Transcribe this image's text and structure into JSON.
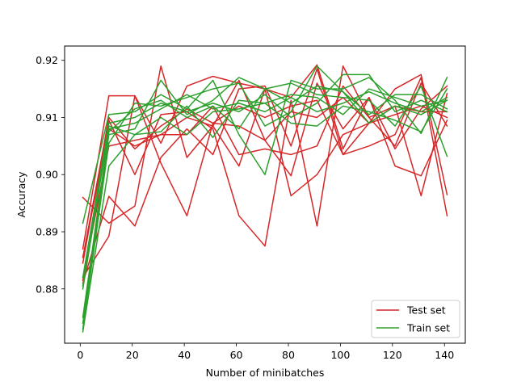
{
  "chart_data": {
    "type": "line",
    "title": "",
    "xlabel": "Number of minibatches",
    "ylabel": "Accuracy",
    "xlim": [
      -6,
      148
    ],
    "ylim": [
      0.8705,
      0.9225
    ],
    "xticks": [
      0,
      20,
      40,
      60,
      80,
      100,
      120,
      140
    ],
    "yticks": [
      0.88,
      0.89,
      0.9,
      0.91,
      0.92
    ],
    "ytick_labels": [
      "0.88",
      "0.89",
      "0.90",
      "0.91",
      "0.92"
    ],
    "grid": false,
    "legend_position": "lower-right",
    "x": [
      1,
      11,
      21,
      31,
      41,
      51,
      61,
      71,
      81,
      91,
      101,
      111,
      121,
      131,
      141
    ],
    "series": [
      {
        "name": "Test set",
        "color": "#d62728",
        "runs": [
          [
            0.896,
            0.8915,
            0.8945,
            0.919,
            0.903,
            0.9085,
            0.9165,
            0.906,
            0.911,
            0.91,
            0.9135,
            0.909,
            0.915,
            0.9175,
            0.8965
          ],
          [
            0.887,
            0.9138,
            0.9138,
            0.9055,
            0.9155,
            0.9172,
            0.916,
            0.915,
            0.9135,
            0.9192,
            0.9045,
            0.9135,
            0.9045,
            0.9115,
            0.9155
          ],
          [
            0.8855,
            0.9095,
            0.9,
            0.9105,
            0.911,
            0.908,
            0.8928,
            0.8875,
            0.913,
            0.891,
            0.919,
            0.91,
            0.912,
            0.8963,
            0.9142
          ],
          [
            0.881,
            0.8962,
            0.891,
            0.903,
            0.908,
            0.9035,
            0.915,
            0.9155,
            0.905,
            0.9185,
            0.9035,
            0.905,
            0.907,
            0.917,
            0.8928
          ],
          [
            0.882,
            0.8892,
            0.9138,
            0.902,
            0.8928,
            0.909,
            0.9085,
            0.906,
            0.8998,
            0.916,
            0.908,
            0.9135,
            0.9015,
            0.8998,
            0.9095
          ],
          [
            0.8855,
            0.908,
            0.905,
            0.907,
            0.91,
            0.9085,
            0.9015,
            0.915,
            0.8963,
            0.9,
            0.907,
            0.909,
            0.9105,
            0.912,
            0.91
          ],
          [
            0.8815,
            0.905,
            0.906,
            0.907,
            0.907,
            0.912,
            0.9035,
            0.9045,
            0.9035,
            0.905,
            0.9155,
            0.91,
            0.905,
            0.916,
            0.9085
          ],
          [
            0.8845,
            0.91,
            0.9045,
            0.9085,
            0.9115,
            0.909,
            0.912,
            0.91,
            0.912,
            0.913,
            0.9035,
            0.909,
            0.912,
            0.911,
            0.911
          ]
        ]
      },
      {
        "name": "Train set",
        "color": "#2ca02c",
        "runs": [
          [
            0.8915,
            0.9105,
            0.911,
            0.914,
            0.9115,
            0.9165,
            0.907,
            0.9,
            0.9165,
            0.915,
            0.915,
            0.917,
            0.913,
            0.9072,
            0.917
          ],
          [
            0.874,
            0.907,
            0.908,
            0.9165,
            0.9105,
            0.913,
            0.917,
            0.915,
            0.916,
            0.914,
            0.9135,
            0.913,
            0.9085,
            0.9155,
            0.9032
          ],
          [
            0.873,
            0.9055,
            0.9125,
            0.912,
            0.9135,
            0.915,
            0.916,
            0.9085,
            0.911,
            0.919,
            0.9145,
            0.909,
            0.912,
            0.9105,
            0.913
          ],
          [
            0.8725,
            0.9015,
            0.907,
            0.91,
            0.907,
            0.911,
            0.9115,
            0.9125,
            0.909,
            0.9085,
            0.912,
            0.911,
            0.9095,
            0.9075,
            0.915
          ],
          [
            0.875,
            0.9075,
            0.9115,
            0.913,
            0.91,
            0.912,
            0.908,
            0.915,
            0.9125,
            0.9155,
            0.9145,
            0.9105,
            0.914,
            0.914,
            0.9115
          ],
          [
            0.88,
            0.908,
            0.909,
            0.9115,
            0.914,
            0.9115,
            0.9125,
            0.911,
            0.9135,
            0.911,
            0.9125,
            0.9145,
            0.9125,
            0.911,
            0.9135
          ],
          [
            0.882,
            0.909,
            0.91,
            0.9125,
            0.911,
            0.9125,
            0.911,
            0.914,
            0.91,
            0.9125,
            0.9175,
            0.9175,
            0.911,
            0.913,
            0.911
          ],
          [
            0.8805,
            0.9085,
            0.907,
            0.9075,
            0.912,
            0.9065,
            0.913,
            0.9125,
            0.914,
            0.9135,
            0.9105,
            0.915,
            0.9135,
            0.912,
            0.913
          ]
        ]
      }
    ]
  }
}
